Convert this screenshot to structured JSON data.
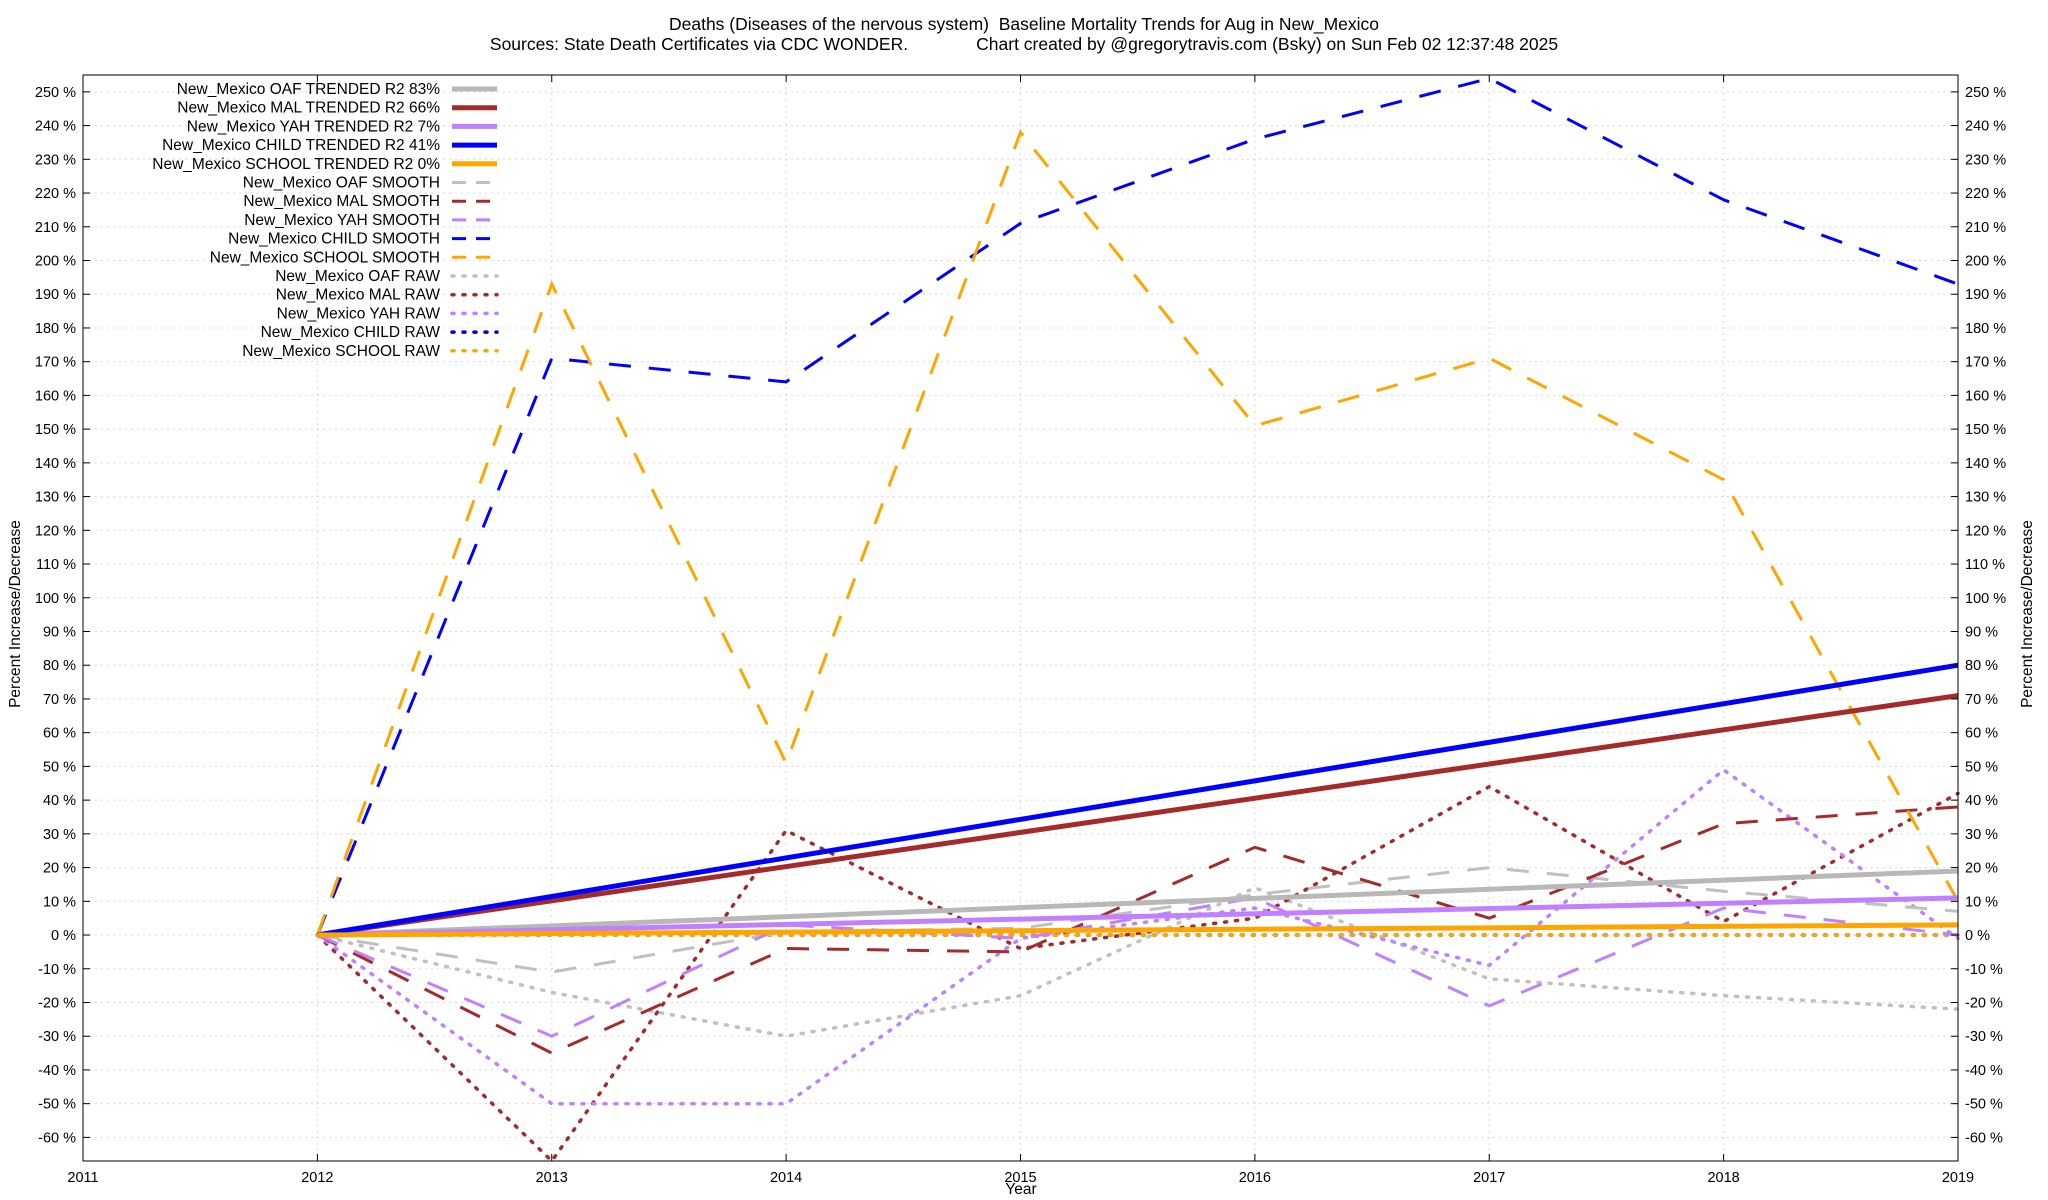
{
  "chart_data": {
    "type": "line",
    "title": "Deaths (Diseases of the nervous system)  Baseline Mortality Trends for Aug in New_Mexico",
    "subtitle": "Sources: State Death Certificates via CDC WONDER.              Chart created by @gregorytravis.com (Bsky) on Sun Feb 02 12:37:48 2025",
    "xlabel": "Year",
    "ylabel": "Percent Increase/Decrease",
    "y2label": "Percent Increase/Decrease",
    "xlim": [
      2011,
      2019
    ],
    "ylim": [
      -67,
      255
    ],
    "x_ticks": [
      "2011",
      "2012",
      "2013",
      "2014",
      "2015",
      "2016",
      "2017",
      "2018",
      "2019"
    ],
    "y_ticks": [
      -60,
      -50,
      -40,
      -30,
      -20,
      -10,
      0,
      10,
      20,
      30,
      40,
      50,
      60,
      70,
      80,
      90,
      100,
      110,
      120,
      130,
      140,
      150,
      160,
      170,
      180,
      190,
      200,
      210,
      220,
      230,
      240,
      250
    ],
    "y_tick_suffix": " %",
    "grid": true,
    "legend_position": "top-left",
    "series": [
      {
        "name": "New_Mexico OAF TRENDED R2  83%",
        "style": "solid",
        "color": "#b8b8b8",
        "x": [
          2012,
          2019
        ],
        "y": [
          0,
          19
        ]
      },
      {
        "name": "New_Mexico MAL TRENDED R2  66%",
        "style": "solid",
        "color": "#a52a2a",
        "x": [
          2012,
          2019
        ],
        "y": [
          0,
          71
        ]
      },
      {
        "name": "New_Mexico YAH TRENDED R2   7%",
        "style": "solid",
        "color": "#c080ff",
        "x": [
          2012,
          2019
        ],
        "y": [
          0,
          11
        ]
      },
      {
        "name": "New_Mexico CHILD TRENDED R2  41%",
        "style": "solid",
        "color": "#0000ff",
        "x": [
          2012,
          2019
        ],
        "y": [
          0,
          80
        ]
      },
      {
        "name": "New_Mexico SCHOOL TRENDED R2   0%",
        "style": "solid",
        "color": "#ffa500",
        "x": [
          2012,
          2019
        ],
        "y": [
          0,
          3
        ]
      },
      {
        "name": "New_Mexico OAF SMOOTH",
        "style": "dash",
        "color": "#c0c0c0",
        "x": [
          2012,
          2013,
          2014,
          2015,
          2016,
          2017,
          2018,
          2019
        ],
        "y": [
          0,
          -11,
          1,
          2,
          12,
          20,
          13,
          7
        ]
      },
      {
        "name": "New_Mexico MAL SMOOTH",
        "style": "dash",
        "color": "#a52a2a",
        "x": [
          2012,
          2013,
          2014,
          2015,
          2016,
          2017,
          2018,
          2019
        ],
        "y": [
          0,
          -35,
          -4,
          -5,
          26,
          5,
          33,
          38
        ]
      },
      {
        "name": "New_Mexico YAH SMOOTH",
        "style": "dash",
        "color": "#c080ff",
        "x": [
          2012,
          2013,
          2014,
          2015,
          2016,
          2017,
          2018,
          2019
        ],
        "y": [
          0,
          -30,
          3,
          -1,
          11,
          -21,
          8,
          0
        ]
      },
      {
        "name": "New_Mexico CHILD SMOOTH",
        "style": "dash",
        "color": "#0000ff",
        "x": [
          2012,
          2013,
          2014,
          2015,
          2016,
          2017,
          2018,
          2019
        ],
        "y": [
          0,
          171,
          164,
          211,
          236,
          254,
          218,
          193
        ]
      },
      {
        "name": "New_Mexico SCHOOL SMOOTH",
        "style": "dash",
        "color": "#ffa500",
        "x": [
          2012,
          2013,
          2014,
          2015,
          2016,
          2017,
          2018,
          2019
        ],
        "y": [
          0,
          193,
          51,
          238,
          151,
          171,
          135,
          10
        ]
      },
      {
        "name": "New_Mexico OAF RAW",
        "style": "dot",
        "color": "#c0c0c0",
        "x": [
          2012,
          2013,
          2014,
          2015,
          2016,
          2017,
          2018,
          2019
        ],
        "y": [
          0,
          -17,
          -30,
          -18,
          14,
          -13,
          -18,
          -22
        ]
      },
      {
        "name": "New_Mexico MAL RAW",
        "style": "dot",
        "color": "#a52a2a",
        "x": [
          2012,
          2013,
          2014,
          2015,
          2016,
          2017,
          2018,
          2019
        ],
        "y": [
          0,
          -67,
          31,
          -4,
          5,
          44,
          4,
          42
        ]
      },
      {
        "name": "New_Mexico YAH RAW",
        "style": "dot",
        "color": "#c080ff",
        "x": [
          2012,
          2013,
          2014,
          2015,
          2016,
          2017,
          2018,
          2019
        ],
        "y": [
          0,
          -50,
          -50,
          -1,
          8,
          -9,
          49,
          -1
        ]
      },
      {
        "name": "New_Mexico CHILD RAW",
        "style": "dot",
        "color": "#0000cc",
        "x": [
          2012,
          2013,
          2014,
          2015,
          2016,
          2017,
          2018,
          2019
        ],
        "y": [
          0,
          0,
          0,
          0,
          0,
          0,
          0,
          0
        ]
      },
      {
        "name": "New_Mexico SCHOOL RAW",
        "style": "dot",
        "color": "#ffa500",
        "x": [
          2012,
          2013,
          2014,
          2015,
          2016,
          2017,
          2018,
          2019
        ],
        "y": [
          0,
          0,
          0,
          0,
          0,
          0,
          0,
          0
        ]
      }
    ]
  }
}
